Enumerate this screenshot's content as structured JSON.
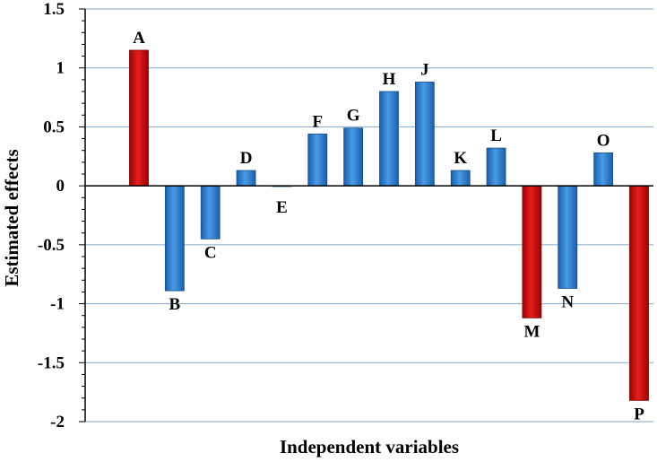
{
  "chart_data": {
    "type": "bar",
    "title": "",
    "xlabel": "Independent variables",
    "ylabel": "Estimated effects",
    "ylim": [
      -2,
      1.5
    ],
    "yticks": [
      1.5,
      1,
      0.5,
      0,
      -0.5,
      -1,
      -1.5,
      -2
    ],
    "grid": true,
    "categories": [
      "A",
      "B",
      "C",
      "D",
      "E",
      "F",
      "G",
      "H",
      "J",
      "K",
      "L",
      "M",
      "N",
      "O",
      "P"
    ],
    "values": [
      1.15,
      -0.89,
      -0.45,
      0.13,
      0.0,
      0.44,
      0.49,
      0.8,
      0.88,
      0.13,
      0.32,
      -1.12,
      -0.87,
      0.28,
      -1.82
    ],
    "significant": [
      true,
      false,
      false,
      false,
      false,
      false,
      false,
      false,
      false,
      false,
      false,
      true,
      false,
      false,
      true
    ],
    "colors": {
      "significant": "#c00000",
      "normal": "#1f6fc5",
      "grid": "#7fa6c9",
      "axis": "#000000"
    }
  }
}
